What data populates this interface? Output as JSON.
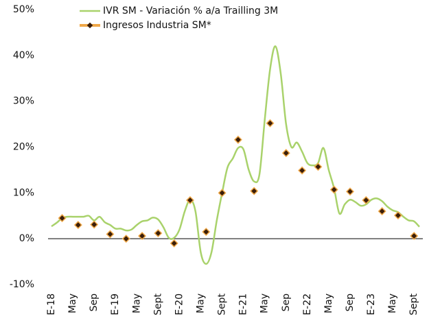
{
  "chart_data": {
    "type": "line",
    "categories": [
      "E-18",
      null,
      null,
      null,
      "May",
      null,
      null,
      null,
      "Sep",
      null,
      null,
      null,
      "E-19",
      null,
      null,
      null,
      "May",
      null,
      null,
      null,
      "Sept",
      null,
      null,
      null,
      "E-20",
      null,
      null,
      null,
      "May",
      null,
      null,
      null,
      "Sept",
      null,
      null,
      null,
      "E-21",
      null,
      null,
      null,
      "May",
      null,
      null,
      null,
      "Sep",
      null,
      null,
      null,
      "E-22",
      null,
      null,
      null,
      "May",
      null,
      null,
      null,
      "Sep",
      null,
      null,
      null,
      "E-23",
      null,
      null,
      null,
      "May",
      null,
      null,
      null,
      "Sept",
      null
    ],
    "series": [
      {
        "name": "IVR SM - Variación % a/a Trailling 3M",
        "color": "#a9d26b",
        "type": "line",
        "values": [
          2.7,
          3.5,
          4.5,
          4.8,
          4.8,
          4.8,
          4.8,
          5.0,
          4.0,
          4.8,
          3.6,
          3.0,
          2.2,
          2.2,
          1.8,
          2.0,
          3.0,
          3.8,
          4.0,
          4.6,
          4.2,
          2.5,
          0.2,
          0.2,
          2.0,
          6.0,
          8.5,
          6.0,
          -3.0,
          -5.5,
          -3.0,
          4.0,
          10.0,
          15.5,
          17.5,
          19.8,
          19.5,
          15.0,
          12.5,
          14.0,
          26.0,
          37.0,
          42.0,
          36.0,
          25.0,
          20.0,
          21.0,
          19.0,
          16.5,
          16.0,
          16.5,
          19.8,
          15.0,
          11.0,
          5.5,
          7.5,
          8.5,
          8.0,
          7.2,
          7.5,
          8.5,
          8.8,
          8.2,
          7.0,
          6.2,
          5.8,
          4.8,
          4.0,
          3.8,
          2.6
        ]
      },
      {
        "name": "Ingresos Industria SM*",
        "color": "#f0a848",
        "marker_color": "#3a1e0a",
        "type": "scatter",
        "values": [
          null,
          null,
          4.5,
          null,
          null,
          3.0,
          null,
          null,
          3.1,
          null,
          null,
          1.0,
          null,
          null,
          0,
          null,
          null,
          0.6,
          null,
          null,
          1.2,
          null,
          null,
          -1.0,
          null,
          null,
          8.4,
          null,
          null,
          1.5,
          null,
          null,
          10.0,
          null,
          null,
          21.6,
          null,
          null,
          10.4,
          null,
          null,
          25.2,
          null,
          null,
          18.7,
          null,
          null,
          14.9,
          null,
          null,
          15.7,
          null,
          null,
          10.7,
          null,
          null,
          10.3,
          null,
          null,
          8.4,
          null,
          null,
          6.0,
          null,
          null,
          5.1,
          null,
          null,
          0.6,
          null
        ]
      }
    ],
    "ylim": [
      -10,
      50
    ],
    "yticks": [
      {
        "value": -10,
        "label": "-10%"
      },
      {
        "value": 0,
        "label": "0%"
      },
      {
        "value": 10,
        "label": "10%"
      },
      {
        "value": 20,
        "label": "20%"
      },
      {
        "value": 30,
        "label": "30%"
      },
      {
        "value": 40,
        "label": "40%"
      },
      {
        "value": 50,
        "label": "50%"
      }
    ],
    "grid": false,
    "legend": "top"
  }
}
